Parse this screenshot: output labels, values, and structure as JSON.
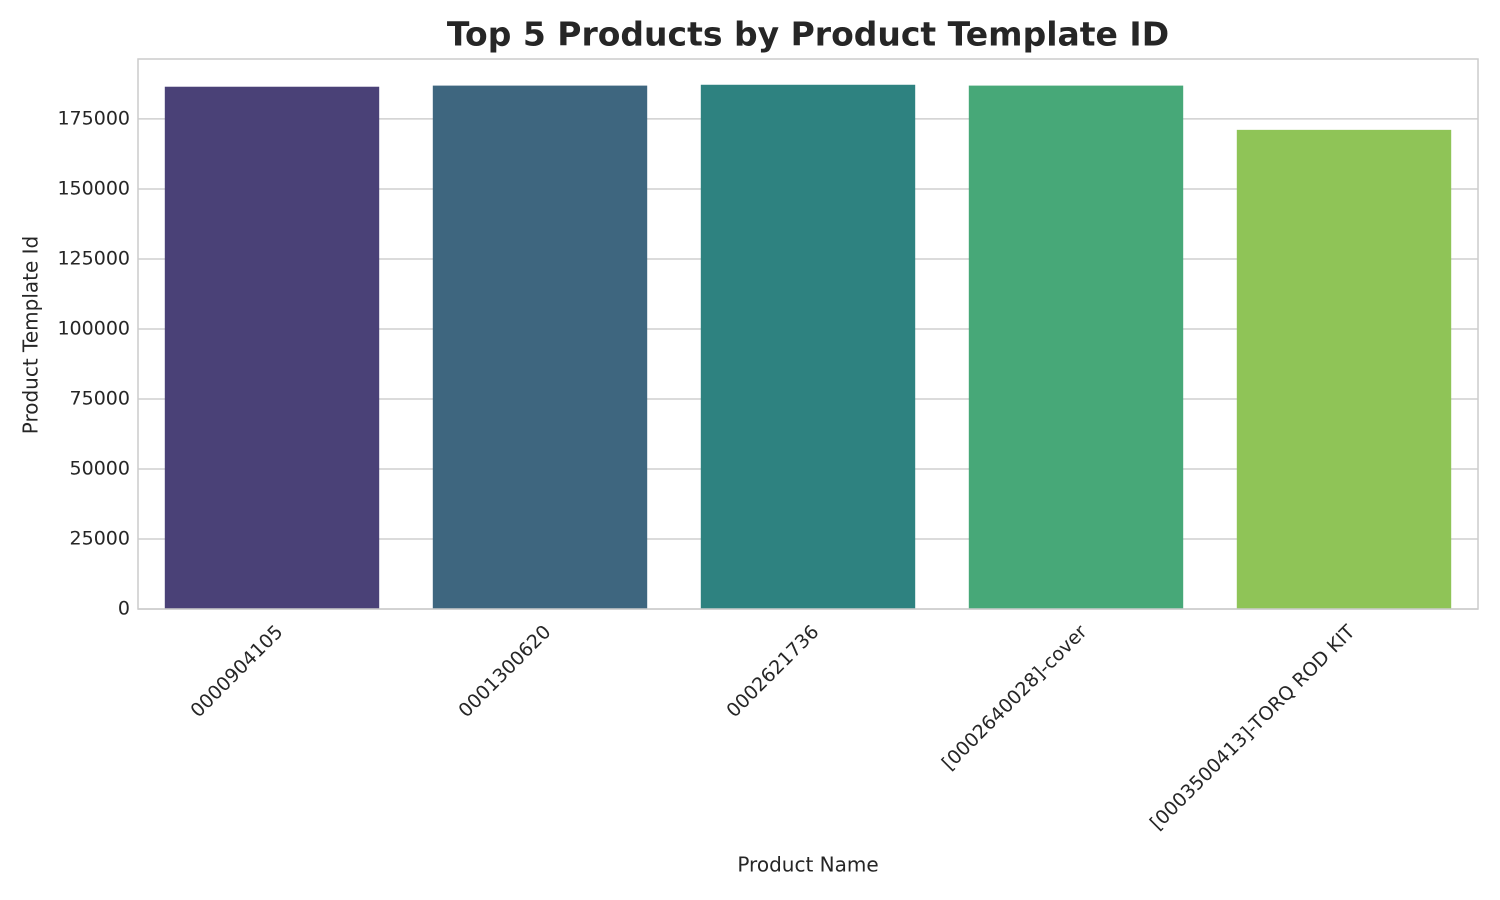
{
  "chart_data": {
    "type": "bar",
    "title": "Top 5 Products by Product Template ID",
    "x_label": "Product Name",
    "y_label": "Product Template Id",
    "categories": [
      "0000904105",
      "0001300620",
      "0002621736",
      "[0002640028]-cover",
      "[0003500413]-TORQ ROD KIT"
    ],
    "values": [
      186500,
      186900,
      187200,
      186900,
      171100
    ],
    "colors": [
      "#4a4177",
      "#3e667f",
      "#2e8280",
      "#47a878",
      "#8fc457"
    ],
    "ylim": [
      0,
      196400
    ],
    "yticks": [
      0,
      25000,
      50000,
      75000,
      100000,
      125000,
      150000,
      175000
    ],
    "grid": true
  }
}
